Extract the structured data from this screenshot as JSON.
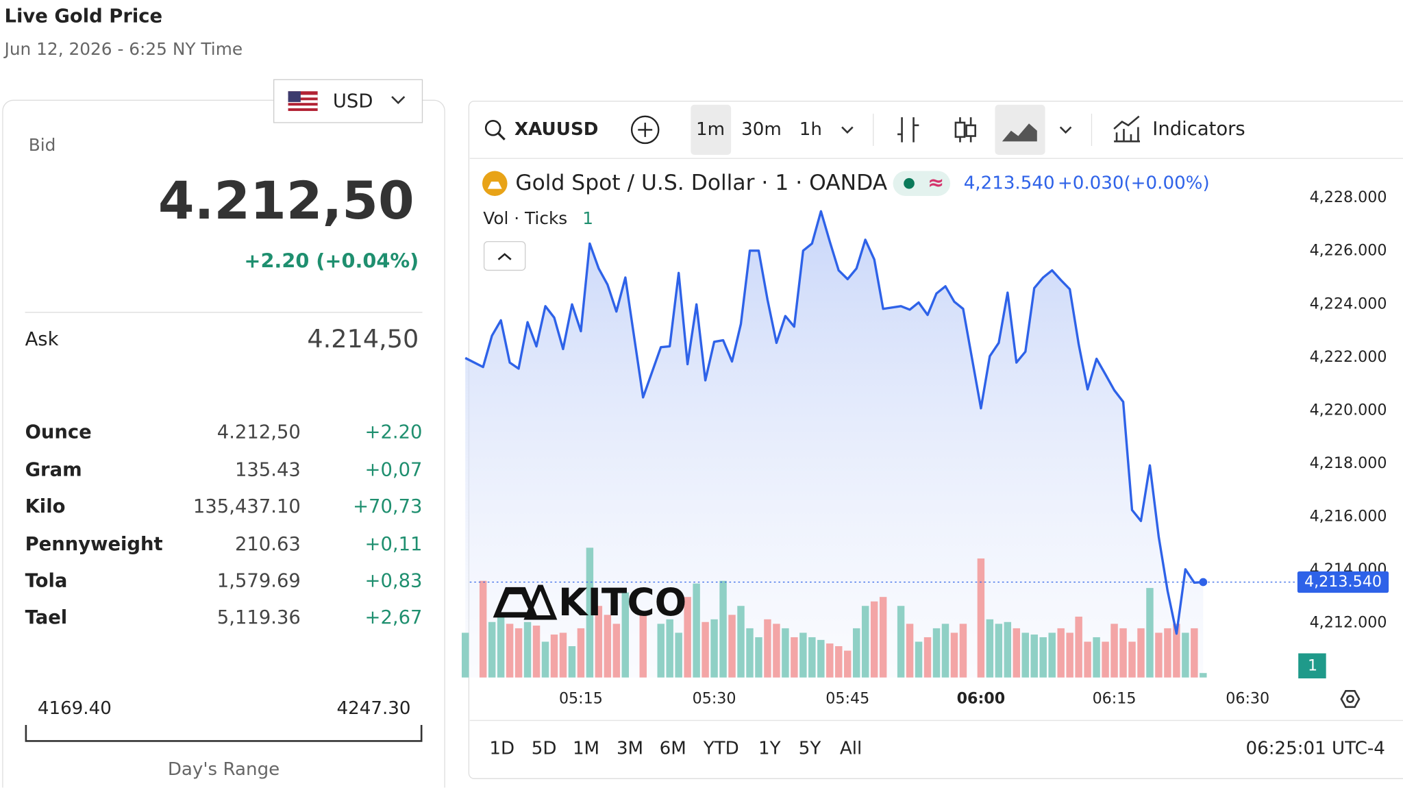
{
  "header": {
    "title": "Live Gold Price",
    "subtitle": "Jun 12, 2026 - 6:25 NY Time"
  },
  "currency": "USD",
  "quote": {
    "bid_label": "Bid",
    "bid": "4.212,50",
    "change": "+2.20 (+0.04%)",
    "ask_label": "Ask",
    "ask": "4.214,50"
  },
  "units": {
    "rows": [
      [
        "Ounce",
        "4.212,50",
        "+2.20"
      ],
      [
        "Gram",
        "135.43",
        "+0,07"
      ],
      [
        "Kilo",
        "135,437.10",
        "+70,73"
      ],
      [
        "Pennyweight",
        "210.63",
        "+0,11"
      ],
      [
        "Tola",
        "1,579.69",
        "+0,83"
      ],
      [
        "Tael",
        "5,119.36",
        "+2,67"
      ]
    ]
  },
  "range": {
    "low": "4169.40",
    "high": "4247.30",
    "label": "Day's Range"
  },
  "toolbar": {
    "symbol": "XAUUSD",
    "intervals": [
      "1m",
      "30m",
      "1h"
    ],
    "indicators": "Indicators"
  },
  "chart_data": {
    "type": "line",
    "title": "Gold Spot / U.S. Dollar · 1 · OANDA",
    "last_label": "4,213.540",
    "change": "+0.030",
    "change_pct": "(+0.00%)",
    "volume_label": "Vol · Ticks",
    "volume_count": 1,
    "watermark": "KITCO",
    "color": "#2e62e8",
    "up_color": "#8fd0c5",
    "down_color": "#f3a5a6",
    "x": [
      302,
      304,
      305,
      306,
      307,
      308,
      309,
      310,
      311,
      312,
      313,
      314,
      315,
      316,
      317,
      318,
      319,
      320,
      322,
      324,
      325,
      326,
      327,
      328,
      329,
      330,
      331,
      332,
      333,
      334,
      335,
      336,
      337,
      338,
      339,
      340,
      341,
      342,
      343,
      344,
      345,
      346,
      347,
      348,
      349,
      351,
      352,
      353,
      354,
      355,
      356,
      357,
      358,
      360,
      361,
      362,
      363,
      364,
      365,
      366,
      367,
      368,
      369,
      370,
      371,
      372,
      373,
      374,
      375,
      376,
      377,
      378,
      379,
      380,
      381,
      382,
      383,
      384,
      385
    ],
    "values": [
      4221.97,
      4221.63,
      4222.81,
      4223.39,
      4221.8,
      4221.57,
      4223.32,
      4222.41,
      4223.92,
      4223.49,
      4222.31,
      4223.99,
      4222.98,
      4226.28,
      4225.34,
      4224.73,
      4223.72,
      4225.0,
      4220.49,
      4222.38,
      4222.41,
      4225.17,
      4221.74,
      4223.99,
      4221.13,
      4222.58,
      4222.64,
      4221.84,
      4223.25,
      4226.01,
      4226.01,
      4224.16,
      4222.54,
      4223.55,
      4223.15,
      4226.01,
      4226.28,
      4227.49,
      4226.35,
      4225.27,
      4224.94,
      4225.34,
      4226.42,
      4225.68,
      4223.82,
      4223.92,
      4223.79,
      4224.06,
      4223.59,
      4224.4,
      4224.67,
      4224.09,
      4223.82,
      4220.08,
      4222.04,
      4222.54,
      4224.43,
      4221.8,
      4222.21,
      4224.6,
      4225.0,
      4225.27,
      4224.9,
      4224.56,
      4222.48,
      4220.79,
      4221.94,
      4221.36,
      4220.76,
      4220.32,
      4216.25,
      4215.84,
      4217.93,
      4215.24,
      4213.21,
      4211.6,
      4214.02,
      4213.52,
      4213.54
    ],
    "volume": [
      50,
      108,
      62,
      70,
      60,
      55,
      62,
      58,
      40,
      48,
      50,
      35,
      55,
      145,
      80,
      70,
      60,
      95,
      72,
      60,
      65,
      50,
      90,
      105,
      62,
      65,
      108,
      70,
      80,
      55,
      45,
      65,
      60,
      55,
      45,
      50,
      45,
      42,
      38,
      35,
      30,
      55,
      80,
      85,
      90,
      80,
      60,
      40,
      45,
      55,
      60,
      50,
      60,
      133,
      65,
      60,
      62,
      55,
      50,
      48,
      45,
      50,
      55,
      50,
      68,
      40,
      45,
      40,
      60,
      55,
      40,
      55,
      100,
      50,
      55,
      60,
      50,
      55,
      5
    ],
    "xlim": [
      302.5,
      395.6
    ],
    "ylim": [
      4209.95,
      4229.38
    ],
    "xticks": [
      {
        "value": 315,
        "label": "05:15"
      },
      {
        "value": 330,
        "label": "05:30"
      },
      {
        "value": 345,
        "label": "05:45"
      },
      {
        "value": 360,
        "label": "06:00"
      },
      {
        "value": 375,
        "label": "06:15"
      },
      {
        "value": 390,
        "label": "06:30"
      }
    ],
    "yticks": [
      {
        "value": 4212,
        "label": "4,212.000"
      },
      {
        "value": 4214,
        "label": "4,214.000"
      },
      {
        "value": 4216,
        "label": "4,216.000"
      },
      {
        "value": 4218,
        "label": "4,218.000"
      },
      {
        "value": 4220,
        "label": "4,220.000"
      },
      {
        "value": 4222,
        "label": "4,222.000"
      },
      {
        "value": 4224,
        "label": "4,224.000"
      },
      {
        "value": 4226,
        "label": "4,226.000"
      },
      {
        "value": 4228,
        "label": "4,228.000"
      }
    ],
    "grid": false
  },
  "periods": [
    "1D",
    "5D",
    "1M",
    "3M",
    "6M",
    "YTD",
    "1Y",
    "5Y",
    "All"
  ],
  "clock": "06:25:01 UTC-4"
}
